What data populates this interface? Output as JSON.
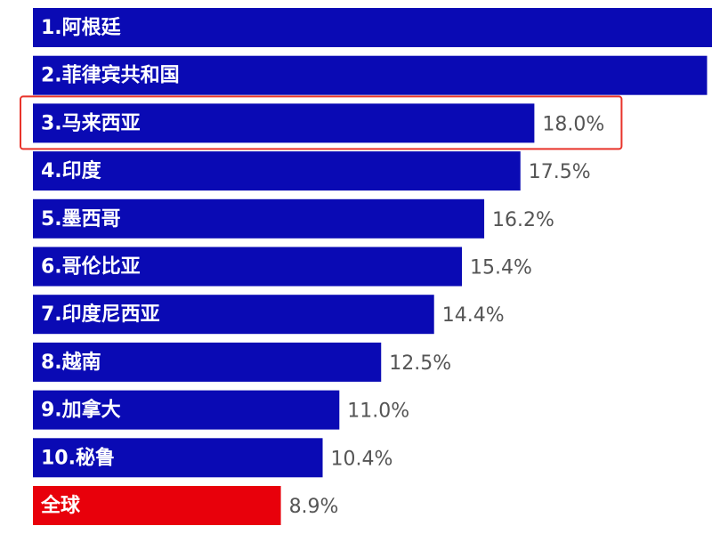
{
  "chart_data": {
    "type": "bar",
    "orientation": "horizontal",
    "categories": [
      "1.阿根廷",
      "2.菲律宾共和国",
      "3.马来西亚",
      "4.印度",
      "5.墨西哥",
      "6.哥伦比亚",
      "7.印度尼西亚",
      "8.越南",
      "9.加拿大",
      "10.秘鲁",
      "全球"
    ],
    "values": [
      25,
      24.2,
      18.0,
      17.5,
      16.2,
      15.4,
      14.4,
      12.5,
      11.0,
      10.4,
      8.9
    ],
    "value_labels": [
      null,
      null,
      "18.0%",
      "17.5%",
      "16.2%",
      "15.4%",
      "14.4%",
      "12.5%",
      "11.0%",
      "10.4%",
      "8.9%"
    ],
    "colors": [
      "#0a0ab4",
      "#0a0ab4",
      "#0a0ab4",
      "#0a0ab4",
      "#0a0ab4",
      "#0a0ab4",
      "#0a0ab4",
      "#0a0ab4",
      "#0a0ab4",
      "#0a0ab4",
      "#e8000b"
    ],
    "highlight": 2
  }
}
